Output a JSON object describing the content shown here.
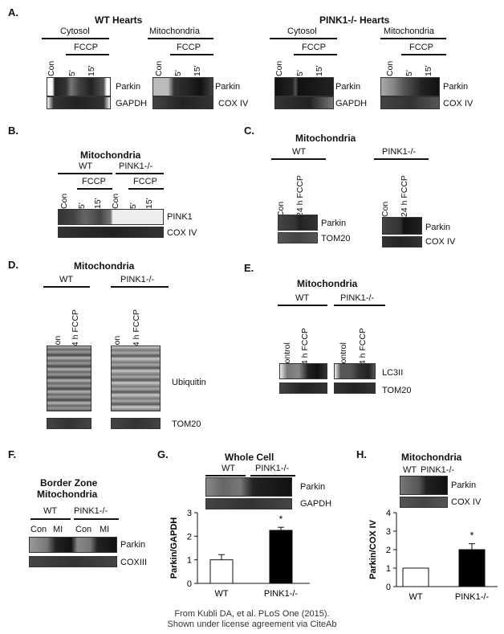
{
  "panels": {
    "A": {
      "label": "A.",
      "wt_title": "WT Hearts",
      "ko_title": "PINK1-/- Hearts",
      "cytosol": "Cytosol",
      "mito": "Mitochondria",
      "fccp": "FCCP",
      "lanes": [
        "Con",
        "5'",
        "15'"
      ],
      "parkin": "Parkin",
      "gapdh": "GAPDH",
      "cox4": "COX IV"
    },
    "B": {
      "label": "B.",
      "title": "Mitochondria",
      "wt": "WT",
      "ko": "PINK1-/-",
      "fccp": "FCCP",
      "lanes": [
        "Con",
        "5'",
        "15'"
      ],
      "pink1": "PINK1",
      "cox4": "COX IV"
    },
    "C": {
      "label": "C.",
      "title": "Mitochondria",
      "wt": "WT",
      "ko": "PINK1-/-",
      "lanes": [
        "Con",
        "24 h FCCP"
      ],
      "parkin": "Parkin",
      "tom20": "TOM20",
      "cox4": "COX IV"
    },
    "D": {
      "label": "D.",
      "title": "Mitochondria",
      "wt": "WT",
      "ko": "PINK1-/-",
      "lanes": [
        "Con",
        "24 h FCCP"
      ],
      "ubiquitin": "Ubiquitin",
      "tom20": "TOM20"
    },
    "E": {
      "label": "E.",
      "title": "Mitochondria",
      "wt": "WT",
      "ko": "PINK1-/-",
      "lanes": [
        "Control",
        "24 h FCCP"
      ],
      "lc3": "LC3II",
      "tom20": "TOM20"
    },
    "F": {
      "label": "F.",
      "title1": "Border Zone",
      "title2": "Mitochondria",
      "wt": "WT",
      "ko": "PINK1-/-",
      "lanes": [
        "Con",
        "MI",
        "Con",
        "MI"
      ],
      "parkin": "Parkin",
      "cox3": "COXIII"
    },
    "G": {
      "label": "G.",
      "title": "Whole Cell",
      "wt": "WT",
      "ko": "PINK1-/-",
      "parkin": "Parkin",
      "gapdh": "GAPDH"
    },
    "H": {
      "label": "H.",
      "title": "Mitochondria",
      "wt": "WT",
      "ko": "PINK1-/-",
      "parkin": "Parkin",
      "cox4": "COX IV"
    }
  },
  "chart_data": [
    {
      "type": "bar",
      "panel": "G",
      "categories": [
        "WT",
        "PINK1-/-"
      ],
      "values": [
        1.0,
        2.25
      ],
      "errors": [
        0.22,
        0.13
      ],
      "colors": [
        "#ffffff",
        "#000000"
      ],
      "significance": [
        "",
        "*"
      ],
      "ylabel": "Parkin/GAPDH",
      "ylim": [
        0,
        3
      ],
      "yticks": [
        "0",
        "1",
        "2",
        "3"
      ]
    },
    {
      "type": "bar",
      "panel": "H",
      "categories": [
        "WT",
        "PINK1-/-"
      ],
      "values": [
        1.0,
        2.0
      ],
      "errors": [
        0.0,
        0.32
      ],
      "colors": [
        "#ffffff",
        "#000000"
      ],
      "significance": [
        "",
        "*"
      ],
      "ylabel": "Parkin/COX IV",
      "ylim": [
        0,
        4
      ],
      "yticks": [
        "0",
        "1",
        "2",
        "3",
        "4"
      ]
    }
  ],
  "credit": {
    "line1": "From Kubli DA, et al. PLoS One (2015).",
    "line2": "Shown under license agreement via CiteAb"
  }
}
